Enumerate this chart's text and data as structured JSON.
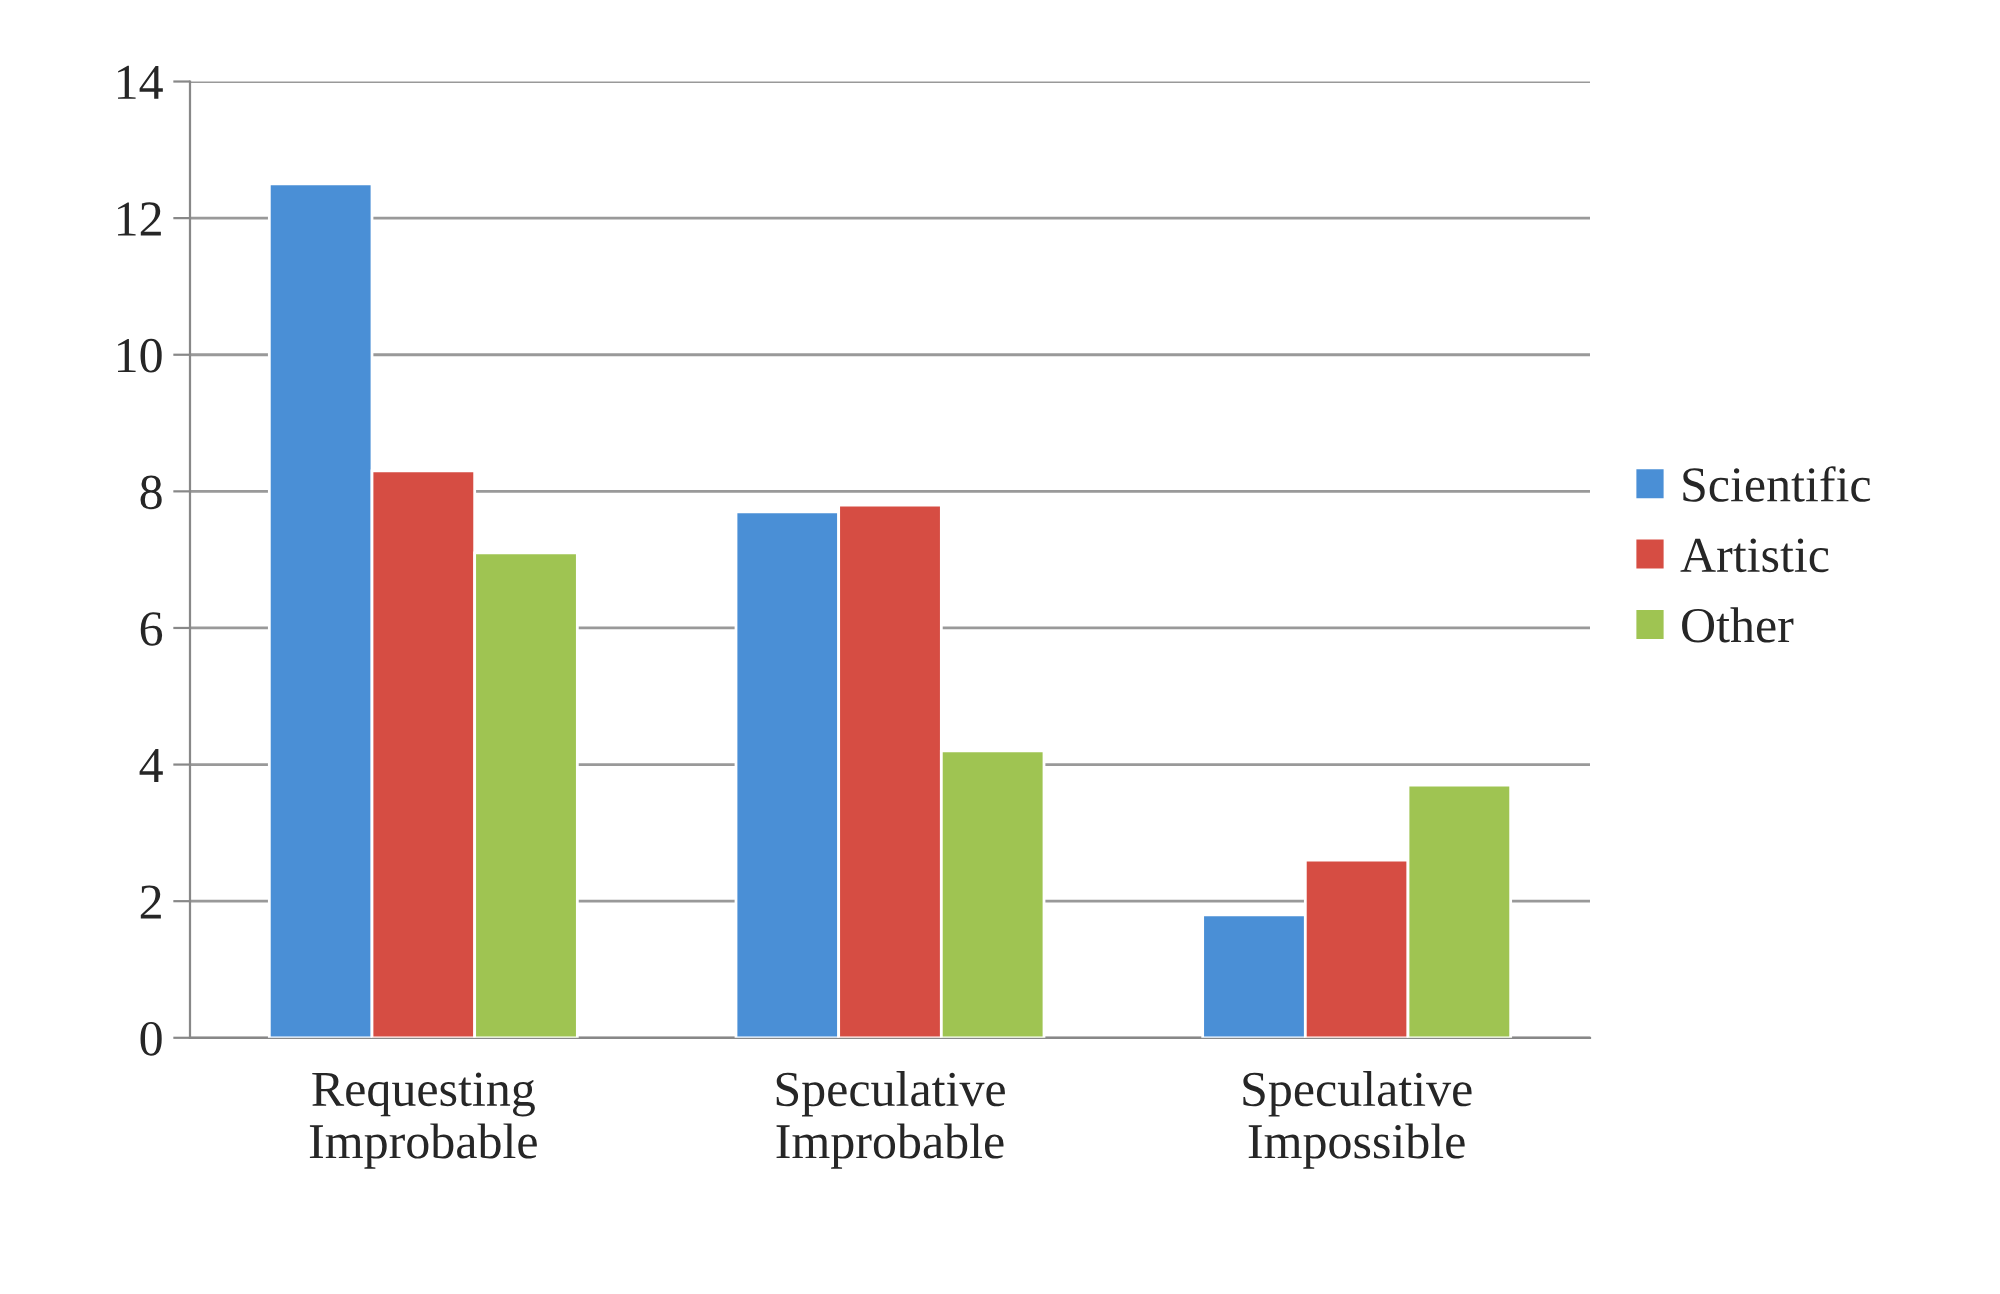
{
  "chart_data": {
    "type": "bar",
    "categories": [
      "Requesting\nImprobable",
      "Speculative\nImprobable",
      "Speculative\nImpossible"
    ],
    "series": [
      {
        "name": "Scientific",
        "color": "#4a8fd6",
        "values": [
          12.5,
          7.7,
          1.8
        ]
      },
      {
        "name": "Artistic",
        "color": "#d64d43",
        "values": [
          8.3,
          7.8,
          2.6
        ]
      },
      {
        "name": "Other",
        "color": "#9fc452",
        "values": [
          7.1,
          4.2,
          3.7
        ]
      }
    ],
    "ylim": [
      0,
      14
    ],
    "yticks": [
      0,
      2,
      4,
      6,
      8,
      10,
      12,
      14
    ],
    "grid": "y",
    "legend": "right"
  }
}
